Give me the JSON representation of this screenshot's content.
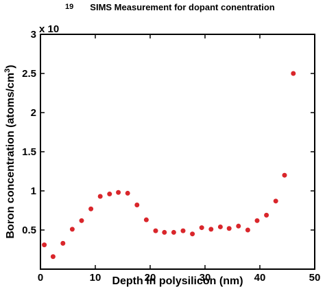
{
  "chart_data": {
    "type": "scatter",
    "title": "SIMS Measurement for dopant conentration",
    "xlabel": "Depth in polysilicon (nm)",
    "ylabel": "Boron concentration (atoms/cm",
    "ylabel_superscript": "3",
    "ylabel_suffix": ")",
    "y_multiplier_base": "x 10",
    "y_multiplier_exponent": "19",
    "xlim": [
      0,
      50
    ],
    "ylim": [
      0,
      3
    ],
    "x_ticks": [
      0,
      10,
      20,
      30,
      40,
      50
    ],
    "y_ticks": [
      0.5,
      1,
      1.5,
      2,
      2.5,
      3
    ],
    "x_tick_labels": [
      "0",
      "10",
      "20",
      "30",
      "40",
      "50"
    ],
    "y_tick_labels": [
      "0.5",
      "1",
      "1.5",
      "2",
      "2.5",
      "3"
    ],
    "grid": false,
    "marker_color": "#d9262b",
    "series": [
      {
        "x": [
          0.7,
          2.3,
          4.1,
          5.8,
          7.5,
          9.2,
          10.9,
          12.6,
          14.2,
          15.9,
          17.6,
          19.3,
          21.0,
          22.6,
          24.3,
          26.0,
          27.7,
          29.4,
          31.1,
          32.8,
          34.4,
          36.1,
          37.8,
          39.5,
          41.2,
          42.9,
          44.5,
          46.1
        ],
        "y": [
          0.31,
          0.16,
          0.33,
          0.51,
          0.62,
          0.77,
          0.93,
          0.96,
          0.98,
          0.97,
          0.82,
          0.63,
          0.49,
          0.47,
          0.47,
          0.49,
          0.45,
          0.53,
          0.51,
          0.54,
          0.52,
          0.55,
          0.5,
          0.62,
          0.69,
          0.87,
          1.2,
          2.5
        ]
      }
    ]
  }
}
